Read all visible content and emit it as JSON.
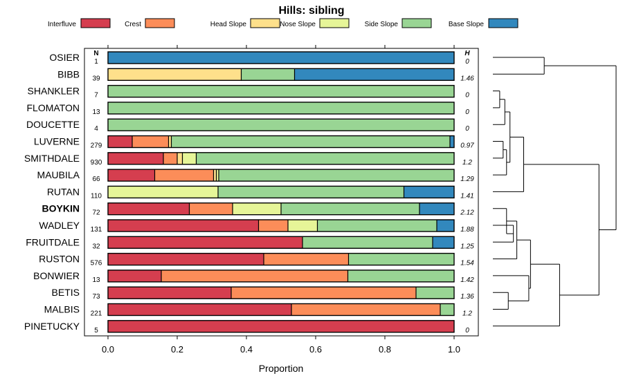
{
  "chart_data": {
    "type": "bar",
    "stacked": true,
    "orientation": "horizontal",
    "title": "Hills: sibling",
    "xlabel": "Proportion",
    "xlim": [
      0,
      1
    ],
    "xticks": [
      "0.0",
      "0.2",
      "0.4",
      "0.6",
      "0.8",
      "1.0"
    ],
    "xtick_values": [
      0,
      0.2,
      0.4,
      0.6,
      0.8,
      1.0
    ],
    "n_header": "N",
    "h_header": "H",
    "highlight": "BOYKIN",
    "legend": [
      {
        "name": "Interfluve",
        "color": "#D53E4F"
      },
      {
        "name": "Crest",
        "color": "#FC8D59"
      },
      {
        "name": "Head Slope",
        "color": "#FEE08B"
      },
      {
        "name": "Nose Slope",
        "color": "#E6F598"
      },
      {
        "name": "Side Slope",
        "color": "#99D594"
      },
      {
        "name": "Base Slope",
        "color": "#3288BD"
      }
    ],
    "categories": [
      "OSIER",
      "BIBB",
      "SHANKLER",
      "FLOMATON",
      "DOUCETTE",
      "LUVERNE",
      "SMITHDALE",
      "MAUBILA",
      "RUTAN",
      "BOYKIN",
      "WADLEY",
      "FRUITDALE",
      "RUSTON",
      "BONWIER",
      "BETIS",
      "MALBIS",
      "PINETUCKY"
    ],
    "n": [
      "1",
      "39",
      "7",
      "13",
      "4",
      "279",
      "930",
      "66",
      "110",
      "72",
      "131",
      "32",
      "576",
      "13",
      "73",
      "221",
      "5"
    ],
    "h": [
      "0",
      "1.46",
      "0",
      "0",
      "0",
      "0.97",
      "1.2",
      "1.29",
      "1.41",
      "2.12",
      "1.88",
      "1.25",
      "1.54",
      "1.42",
      "1.36",
      "1.2",
      "0"
    ],
    "series": [
      {
        "name": "Interfluve",
        "values": [
          0,
          0,
          0,
          0,
          0,
          0.07,
          0.16,
          0.135,
          0,
          0.235,
          0.435,
          0.562,
          0.45,
          0.154,
          0.356,
          0.53,
          1.0
        ]
      },
      {
        "name": "Crest",
        "values": [
          0,
          0,
          0,
          0,
          0,
          0.105,
          0.04,
          0.17,
          0,
          0.125,
          0.085,
          0,
          0.245,
          0.539,
          0.534,
          0.43,
          0
        ]
      },
      {
        "name": "Head Slope",
        "values": [
          0,
          0.385,
          0,
          0,
          0,
          0.008,
          0.015,
          0.008,
          0,
          0,
          0,
          0,
          0,
          0,
          0,
          0,
          0
        ]
      },
      {
        "name": "Nose Slope",
        "values": [
          0,
          0,
          0,
          0,
          0,
          0,
          0.04,
          0.007,
          0.318,
          0.14,
          0.085,
          0,
          0,
          0,
          0,
          0,
          0
        ]
      },
      {
        "name": "Side Slope",
        "values": [
          0,
          0.154,
          1.0,
          1.0,
          1.0,
          0.805,
          0.745,
          0.68,
          0.537,
          0.4,
          0.345,
          0.376,
          0.305,
          0.307,
          0.11,
          0.04,
          0
        ]
      },
      {
        "name": "Base Slope",
        "values": [
          1.0,
          0.461,
          0,
          0,
          0,
          0.012,
          0,
          0,
          0.145,
          0.1,
          0.05,
          0.062,
          0,
          0,
          0,
          0,
          0
        ]
      }
    ],
    "dendrogram": {
      "leaf_order": [
        "OSIER",
        "BIBB",
        "SHANKLER",
        "FLOMATON",
        "DOUCETTE",
        "LUVERNE",
        "SMITHDALE",
        "MAUBILA",
        "RUTAN",
        "BOYKIN",
        "WADLEY",
        "FRUITDALE",
        "RUSTON",
        "BONWIER",
        "BETIS",
        "MALBIS",
        "PINETUCKY"
      ],
      "merges": [
        {
          "left": "L0",
          "right": "L1",
          "height": 0.3
        },
        {
          "left": "L2",
          "right": "L3",
          "height": 0.04
        },
        {
          "left": "M1",
          "right": "L4",
          "height": 0.07
        },
        {
          "left": "L5",
          "right": "L6",
          "height": 0.06
        },
        {
          "left": "M3",
          "right": "L7",
          "height": 0.08
        },
        {
          "left": "M2",
          "right": "M4",
          "height": 0.1
        },
        {
          "left": "M5",
          "right": "L8",
          "height": 0.18
        },
        {
          "left": "L10",
          "right": "L11",
          "height": 0.12
        },
        {
          "left": "L9",
          "right": "M7",
          "height": 0.08
        },
        {
          "left": "M8",
          "right": "L12",
          "height": 0.14
        },
        {
          "left": "L14",
          "right": "L15",
          "height": 0.09
        },
        {
          "left": "L13",
          "right": "M10",
          "height": 0.21
        },
        {
          "left": "M9",
          "right": "M11",
          "height": 0.22
        },
        {
          "left": "M12",
          "right": "L16",
          "height": 0.39
        },
        {
          "left": "M6",
          "right": "M13",
          "height": 0.62
        },
        {
          "left": "M0",
          "right": "M14",
          "height": 0.72
        }
      ]
    }
  }
}
